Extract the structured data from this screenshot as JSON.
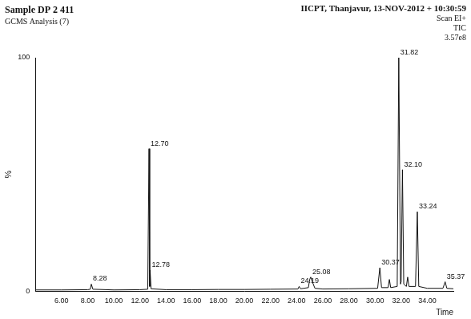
{
  "chart_data": {
    "type": "line",
    "title": "Sample DP 2 411",
    "subtitle": "GCMS Analysis (7)",
    "header_right": [
      "IICPT, Thanjavur, 13-NOV-2012 + 10:30:59",
      "Scan EI+",
      "TIC",
      "3.57e8"
    ],
    "x_label": "Time",
    "y_label": "%",
    "x": [
      4.0,
      6.0,
      8.0,
      8.2,
      8.28,
      8.4,
      10.0,
      12.0,
      12.6,
      12.7,
      12.75,
      12.78,
      12.85,
      14.0,
      16.0,
      18.0,
      20.0,
      22.0,
      24.1,
      24.19,
      24.3,
      24.9,
      25.0,
      25.08,
      25.2,
      25.4,
      26.0,
      28.0,
      30.2,
      30.37,
      30.5,
      31.0,
      31.1,
      31.2,
      31.7,
      31.82,
      31.95,
      32.0,
      32.1,
      32.2,
      32.4,
      32.5,
      32.6,
      33.1,
      33.24,
      33.35,
      34.0,
      35.2,
      35.37,
      35.5,
      36.0
    ],
    "values": [
      0.5,
      0.5,
      0.6,
      0.8,
      3,
      0.8,
      0.5,
      0.6,
      0.8,
      61,
      2,
      9,
      1,
      0.6,
      0.6,
      0.7,
      0.7,
      0.8,
      0.9,
      2,
      1,
      1.5,
      5,
      6,
      4,
      1.2,
      0.9,
      1,
      1.2,
      10,
      1.5,
      1.5,
      5,
      1.5,
      2,
      100,
      3,
      4,
      52,
      3,
      2,
      6,
      2,
      2,
      34,
      2,
      1.2,
      1.2,
      4,
      1.2,
      1
    ],
    "color": "#111111",
    "annotations": [
      {
        "text": "8.28",
        "x": 8.28,
        "y": 3
      },
      {
        "text": "12.70",
        "x": 12.7,
        "y": 61
      },
      {
        "text": "12.78",
        "x": 12.78,
        "y": 9
      },
      {
        "text": "24.19",
        "x": 24.19,
        "y": 2
      },
      {
        "text": "25.08",
        "x": 25.08,
        "y": 6
      },
      {
        "text": "30.37",
        "x": 30.37,
        "y": 10
      },
      {
        "text": "31.82",
        "x": 31.82,
        "y": 100
      },
      {
        "text": "32.10",
        "x": 32.1,
        "y": 52
      },
      {
        "text": "33.24",
        "x": 33.24,
        "y": 34
      },
      {
        "text": "35.37",
        "x": 35.37,
        "y": 4
      }
    ],
    "xlim": [
      4,
      36
    ],
    "xticks": [
      {
        "value": 6,
        "label": "6.00"
      },
      {
        "value": 8,
        "label": "8.00"
      },
      {
        "value": 10,
        "label": "10.00"
      },
      {
        "value": 12,
        "label": "12.00"
      },
      {
        "value": 14,
        "label": "14.00"
      },
      {
        "value": 16,
        "label": "16.00"
      },
      {
        "value": 18,
        "label": "18.00"
      },
      {
        "value": 20,
        "label": "20.00"
      },
      {
        "value": 22,
        "label": "22.00"
      },
      {
        "value": 24,
        "label": "24.00"
      },
      {
        "value": 26,
        "label": "26.00"
      },
      {
        "value": 28,
        "label": "28.00"
      },
      {
        "value": 30,
        "label": "30.00"
      },
      {
        "value": 32,
        "label": "32.00"
      },
      {
        "value": 34,
        "label": "34.00"
      }
    ],
    "ylim": [
      0,
      100
    ],
    "yticks": [
      0,
      100
    ],
    "grid": false
  }
}
